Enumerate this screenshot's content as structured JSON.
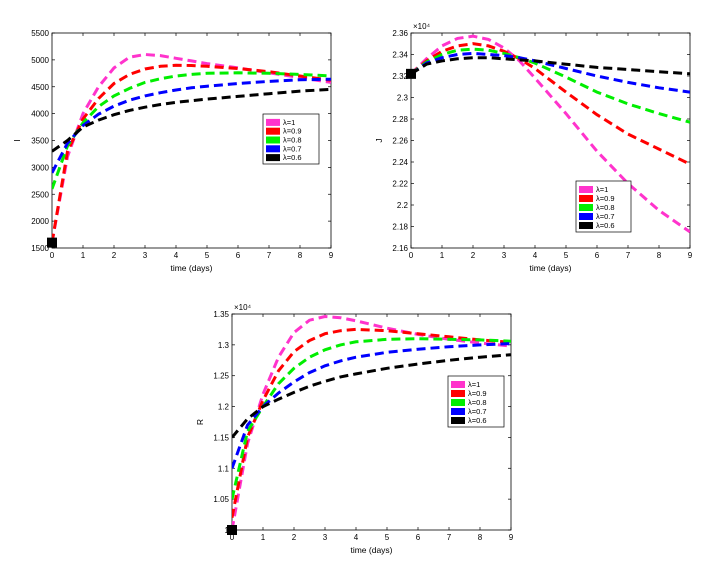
{
  "chart_data": [
    {
      "type": "line",
      "xlabel": "time (days)",
      "ylabel": "I",
      "exponent": "",
      "xlim": [
        0,
        9
      ],
      "ylim": [
        1500,
        5500
      ],
      "xticks": [
        "0",
        "1",
        "2",
        "3",
        "4",
        "5",
        "6",
        "7",
        "8",
        "9"
      ],
      "yticks": [
        "1500",
        "2000",
        "2500",
        "3000",
        "3500",
        "4000",
        "4500",
        "5000",
        "5500"
      ],
      "grid": false,
      "legend_position": "right",
      "series": [
        {
          "name": "λ=1",
          "color": "#ff33cc",
          "x": [
            0,
            0.5,
            1,
            1.5,
            2,
            2.5,
            3,
            3.5,
            4,
            4.5,
            5,
            6,
            7,
            8,
            9
          ],
          "y": [
            1600,
            3200,
            4000,
            4500,
            4850,
            5050,
            5100,
            5080,
            5030,
            4980,
            4930,
            4850,
            4760,
            4670,
            4580
          ]
        },
        {
          "name": "λ=0.9",
          "color": "#ff0000",
          "x": [
            0,
            0.5,
            1,
            1.5,
            2,
            2.5,
            3,
            3.5,
            4,
            4.5,
            5,
            6,
            7,
            8,
            9
          ],
          "y": [
            1600,
            3300,
            3900,
            4280,
            4560,
            4730,
            4830,
            4880,
            4900,
            4895,
            4880,
            4840,
            4780,
            4700,
            4620
          ]
        },
        {
          "name": "λ=0.8",
          "color": "#00ee00",
          "x": [
            0,
            0.5,
            1,
            1.5,
            2,
            2.5,
            3,
            3.5,
            4,
            4.5,
            5,
            6,
            7,
            8,
            9
          ],
          "y": [
            2600,
            3400,
            3830,
            4130,
            4330,
            4470,
            4580,
            4650,
            4700,
            4730,
            4750,
            4760,
            4750,
            4730,
            4700
          ]
        },
        {
          "name": "λ=0.7",
          "color": "#0000ff",
          "x": [
            0,
            0.5,
            1,
            1.5,
            2,
            2.5,
            3,
            3.5,
            4,
            4.5,
            5,
            6,
            7,
            8,
            9
          ],
          "y": [
            2900,
            3450,
            3780,
            3990,
            4140,
            4250,
            4330,
            4390,
            4440,
            4480,
            4510,
            4560,
            4600,
            4630,
            4640
          ]
        },
        {
          "name": "λ=0.6",
          "color": "#000000",
          "x": [
            0,
            0.5,
            1,
            1.5,
            2,
            2.5,
            3,
            3.5,
            4,
            4.5,
            5,
            6,
            7,
            8,
            9
          ],
          "y": [
            3300,
            3500,
            3750,
            3880,
            3980,
            4060,
            4120,
            4170,
            4210,
            4240,
            4270,
            4320,
            4370,
            4420,
            4450
          ]
        }
      ]
    },
    {
      "type": "line",
      "xlabel": "time (days)",
      "ylabel": "J",
      "exponent": "×10⁴",
      "xlim": [
        0,
        9
      ],
      "ylim": [
        2.16,
        2.36
      ],
      "xticks": [
        "0",
        "1",
        "2",
        "3",
        "4",
        "5",
        "6",
        "7",
        "8",
        "9"
      ],
      "yticks": [
        "2.16",
        "2.18",
        "2.2",
        "2.22",
        "2.24",
        "2.26",
        "2.28",
        "2.3",
        "2.32",
        "2.34",
        "2.36"
      ],
      "grid": false,
      "legend_position": "bottom-right",
      "series": [
        {
          "name": "λ=1",
          "color": "#ff33cc",
          "x": [
            0,
            0.5,
            1,
            1.5,
            2,
            2.5,
            3,
            3.5,
            4,
            5,
            6,
            7,
            8,
            9
          ],
          "y": [
            2.322,
            2.336,
            2.348,
            2.355,
            2.357,
            2.354,
            2.346,
            2.334,
            2.318,
            2.285,
            2.25,
            2.22,
            2.195,
            2.175
          ]
        },
        {
          "name": "λ=0.9",
          "color": "#ff0000",
          "x": [
            0,
            0.5,
            1,
            1.5,
            2,
            2.5,
            3,
            3.5,
            4,
            5,
            6,
            7,
            8,
            9
          ],
          "y": [
            2.322,
            2.334,
            2.343,
            2.348,
            2.35,
            2.348,
            2.343,
            2.336,
            2.327,
            2.305,
            2.284,
            2.266,
            2.252,
            2.238
          ]
        },
        {
          "name": "λ=0.8",
          "color": "#00ee00",
          "x": [
            0,
            0.5,
            1,
            1.5,
            2,
            2.5,
            3,
            3.5,
            4,
            5,
            6,
            7,
            8,
            9
          ],
          "y": [
            2.322,
            2.333,
            2.34,
            2.344,
            2.345,
            2.344,
            2.341,
            2.337,
            2.332,
            2.319,
            2.305,
            2.294,
            2.285,
            2.277
          ]
        },
        {
          "name": "λ=0.7",
          "color": "#0000ff",
          "x": [
            0,
            0.5,
            1,
            1.5,
            2,
            2.5,
            3,
            3.5,
            4,
            5,
            6,
            7,
            8,
            9
          ],
          "y": [
            2.322,
            2.332,
            2.337,
            2.34,
            2.341,
            2.34,
            2.339,
            2.337,
            2.334,
            2.327,
            2.32,
            2.314,
            2.309,
            2.305
          ]
        },
        {
          "name": "λ=0.6",
          "color": "#000000",
          "x": [
            0,
            0.5,
            1,
            1.5,
            2,
            2.5,
            3,
            3.5,
            4,
            5,
            6,
            7,
            8,
            9
          ],
          "y": [
            2.322,
            2.331,
            2.334,
            2.336,
            2.337,
            2.337,
            2.336,
            2.335,
            2.334,
            2.331,
            2.328,
            2.326,
            2.324,
            2.322
          ]
        }
      ]
    },
    {
      "type": "line",
      "xlabel": "time (days)",
      "ylabel": "R",
      "exponent": "×10⁴",
      "xlim": [
        0,
        9
      ],
      "ylim": [
        1.0,
        1.35
      ],
      "xticks": [
        "0",
        "1",
        "2",
        "3",
        "4",
        "5",
        "6",
        "7",
        "8",
        "9"
      ],
      "yticks": [
        "1",
        "1.05",
        "1.1",
        "1.15",
        "1.2",
        "1.25",
        "1.3",
        "1.35"
      ],
      "grid": false,
      "legend_position": "right",
      "series": [
        {
          "name": "λ=1",
          "color": "#ff33cc",
          "x": [
            0,
            0.5,
            1,
            1.5,
            2,
            2.5,
            3,
            3.5,
            4,
            5,
            6,
            7,
            8,
            9
          ],
          "y": [
            1.0,
            1.14,
            1.22,
            1.28,
            1.32,
            1.34,
            1.346,
            1.344,
            1.339,
            1.327,
            1.317,
            1.309,
            1.303,
            1.298
          ]
        },
        {
          "name": "λ=0.9",
          "color": "#ff0000",
          "x": [
            0,
            0.5,
            1,
            1.5,
            2,
            2.5,
            3,
            3.5,
            4,
            5,
            6,
            7,
            8,
            9
          ],
          "y": [
            1.02,
            1.15,
            1.21,
            1.258,
            1.289,
            1.307,
            1.318,
            1.323,
            1.325,
            1.323,
            1.318,
            1.313,
            1.308,
            1.304
          ]
        },
        {
          "name": "λ=0.8",
          "color": "#00ee00",
          "x": [
            0,
            0.5,
            1,
            1.5,
            2,
            2.5,
            3,
            3.5,
            4,
            5,
            6,
            7,
            8,
            9
          ],
          "y": [
            1.05,
            1.16,
            1.2,
            1.237,
            1.262,
            1.28,
            1.292,
            1.3,
            1.305,
            1.309,
            1.31,
            1.309,
            1.308,
            1.306
          ]
        },
        {
          "name": "λ=0.7",
          "color": "#0000ff",
          "x": [
            0,
            0.5,
            1,
            1.5,
            2,
            2.5,
            3,
            3.5,
            4,
            5,
            6,
            7,
            8,
            9
          ],
          "y": [
            1.1,
            1.17,
            1.2,
            1.222,
            1.24,
            1.255,
            1.266,
            1.274,
            1.28,
            1.288,
            1.293,
            1.297,
            1.3,
            1.302
          ]
        },
        {
          "name": "λ=0.6",
          "color": "#000000",
          "x": [
            0,
            0.5,
            1,
            1.5,
            2,
            2.5,
            3,
            3.5,
            4,
            5,
            6,
            7,
            8,
            9
          ],
          "y": [
            1.15,
            1.18,
            1.2,
            1.212,
            1.223,
            1.233,
            1.241,
            1.248,
            1.253,
            1.262,
            1.269,
            1.275,
            1.28,
            1.284
          ]
        }
      ]
    }
  ]
}
